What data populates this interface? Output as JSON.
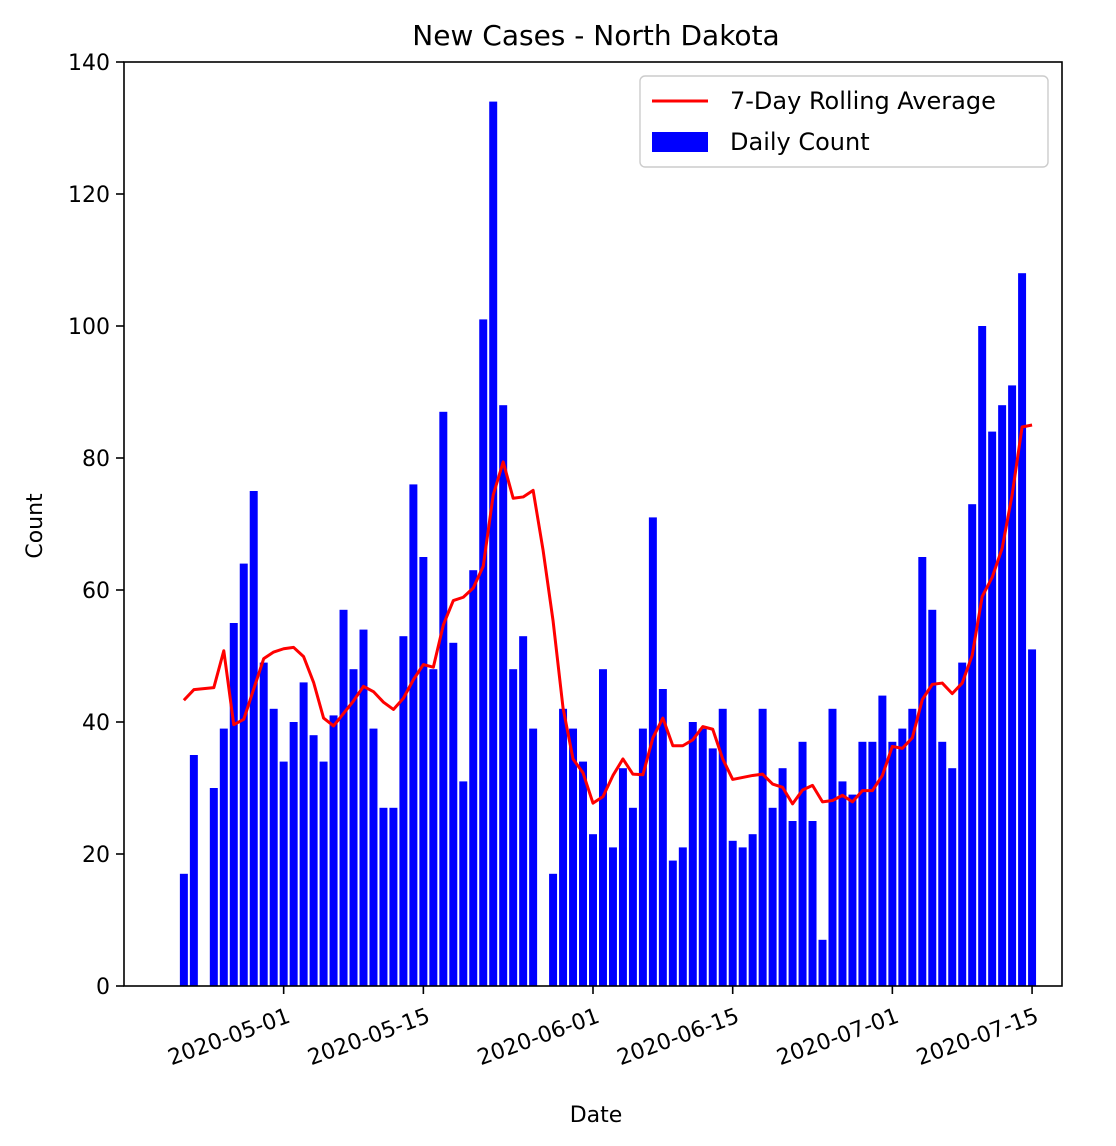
{
  "chart_data": {
    "type": "bar",
    "title": "New Cases - North Dakota",
    "xlabel": "Date",
    "ylabel": "Count",
    "ylim": [
      0,
      140
    ],
    "xlim": [
      "2020-04-15",
      "2020-07-18"
    ],
    "yticks": [
      0,
      20,
      40,
      60,
      80,
      100,
      120,
      140
    ],
    "xticks": [
      "2020-05-01",
      "2020-05-15",
      "2020-06-01",
      "2020-06-15",
      "2020-07-01",
      "2020-07-15"
    ],
    "legend_position": "top-right",
    "legend": [
      {
        "label": "7-Day Rolling Average",
        "kind": "line",
        "color": "#ff0000"
      },
      {
        "label": "Daily Count",
        "kind": "patch",
        "color": "#0000ff"
      }
    ],
    "series": [
      {
        "name": "Daily Count",
        "kind": "bar",
        "color": "#0000ff",
        "points": [
          [
            "2020-04-21",
            17
          ],
          [
            "2020-04-22",
            35
          ],
          [
            "2020-04-24",
            30
          ],
          [
            "2020-04-25",
            39
          ],
          [
            "2020-04-26",
            55
          ],
          [
            "2020-04-27",
            64
          ],
          [
            "2020-04-28",
            75
          ],
          [
            "2020-04-29",
            49
          ],
          [
            "2020-04-30",
            42
          ],
          [
            "2020-05-01",
            34
          ],
          [
            "2020-05-02",
            40
          ],
          [
            "2020-05-03",
            46
          ],
          [
            "2020-05-04",
            38
          ],
          [
            "2020-05-05",
            34
          ],
          [
            "2020-05-06",
            41
          ],
          [
            "2020-05-07",
            57
          ],
          [
            "2020-05-08",
            48
          ],
          [
            "2020-05-09",
            54
          ],
          [
            "2020-05-10",
            39
          ],
          [
            "2020-05-11",
            27
          ],
          [
            "2020-05-12",
            27
          ],
          [
            "2020-05-13",
            53
          ],
          [
            "2020-05-14",
            76
          ],
          [
            "2020-05-15",
            65
          ],
          [
            "2020-05-16",
            48
          ],
          [
            "2020-05-17",
            87
          ],
          [
            "2020-05-18",
            52
          ],
          [
            "2020-05-19",
            31
          ],
          [
            "2020-05-20",
            63
          ],
          [
            "2020-05-21",
            101
          ],
          [
            "2020-05-22",
            134
          ],
          [
            "2020-05-23",
            88
          ],
          [
            "2020-05-24",
            48
          ],
          [
            "2020-05-25",
            53
          ],
          [
            "2020-05-26",
            39
          ],
          [
            "2020-05-28",
            17
          ],
          [
            "2020-05-29",
            42
          ],
          [
            "2020-05-30",
            39
          ],
          [
            "2020-05-31",
            34
          ],
          [
            "2020-06-01",
            23
          ],
          [
            "2020-06-02",
            48
          ],
          [
            "2020-06-03",
            21
          ],
          [
            "2020-06-04",
            33
          ],
          [
            "2020-06-05",
            27
          ],
          [
            "2020-06-06",
            39
          ],
          [
            "2020-06-07",
            71
          ],
          [
            "2020-06-08",
            45
          ],
          [
            "2020-06-09",
            19
          ],
          [
            "2020-06-10",
            21
          ],
          [
            "2020-06-11",
            40
          ],
          [
            "2020-06-12",
            39
          ],
          [
            "2020-06-13",
            36
          ],
          [
            "2020-06-14",
            42
          ],
          [
            "2020-06-15",
            22
          ],
          [
            "2020-06-16",
            21
          ],
          [
            "2020-06-17",
            23
          ],
          [
            "2020-06-18",
            42
          ],
          [
            "2020-06-19",
            27
          ],
          [
            "2020-06-20",
            33
          ],
          [
            "2020-06-21",
            25
          ],
          [
            "2020-06-22",
            37
          ],
          [
            "2020-06-23",
            25
          ],
          [
            "2020-06-24",
            7
          ],
          [
            "2020-06-25",
            42
          ],
          [
            "2020-06-26",
            31
          ],
          [
            "2020-06-27",
            29
          ],
          [
            "2020-06-28",
            37
          ],
          [
            "2020-06-29",
            37
          ],
          [
            "2020-06-30",
            44
          ],
          [
            "2020-07-01",
            37
          ],
          [
            "2020-07-02",
            39
          ],
          [
            "2020-07-03",
            42
          ],
          [
            "2020-07-04",
            65
          ],
          [
            "2020-07-05",
            57
          ],
          [
            "2020-07-06",
            37
          ],
          [
            "2020-07-07",
            33
          ],
          [
            "2020-07-08",
            49
          ],
          [
            "2020-07-09",
            73
          ],
          [
            "2020-07-10",
            100
          ],
          [
            "2020-07-11",
            84
          ],
          [
            "2020-07-12",
            88
          ],
          [
            "2020-07-13",
            91
          ],
          [
            "2020-07-14",
            108
          ],
          [
            "2020-07-15",
            51
          ]
        ]
      },
      {
        "name": "7-Day Rolling Average",
        "kind": "line",
        "color": "#ff0000",
        "points": [
          [
            "2020-04-21",
            43.3
          ],
          [
            "2020-04-22",
            44.9
          ],
          [
            "2020-04-24",
            45.2
          ],
          [
            "2020-04-25",
            50.8
          ],
          [
            "2020-04-26",
            39.6
          ],
          [
            "2020-04-27",
            40.4
          ],
          [
            "2020-04-28",
            45.0
          ],
          [
            "2020-04-29",
            49.6
          ],
          [
            "2020-04-30",
            50.6
          ],
          [
            "2020-05-01",
            51.1
          ],
          [
            "2020-05-02",
            51.3
          ],
          [
            "2020-05-03",
            49.9
          ],
          [
            "2020-05-04",
            46.0
          ],
          [
            "2020-05-05",
            40.6
          ],
          [
            "2020-05-06",
            39.4
          ],
          [
            "2020-05-07",
            41.3
          ],
          [
            "2020-05-08",
            43.2
          ],
          [
            "2020-05-09",
            45.4
          ],
          [
            "2020-05-10",
            44.6
          ],
          [
            "2020-05-11",
            43.0
          ],
          [
            "2020-05-12",
            41.9
          ],
          [
            "2020-05-13",
            43.6
          ],
          [
            "2020-05-14",
            46.4
          ],
          [
            "2020-05-15",
            48.7
          ],
          [
            "2020-05-16",
            48.3
          ],
          [
            "2020-05-17",
            54.7
          ],
          [
            "2020-05-18",
            58.4
          ],
          [
            "2020-05-19",
            58.9
          ],
          [
            "2020-05-20",
            60.3
          ],
          [
            "2020-05-21",
            63.6
          ],
          [
            "2020-05-22",
            74.4
          ],
          [
            "2020-05-23",
            79.4
          ],
          [
            "2020-05-24",
            73.9
          ],
          [
            "2020-05-25",
            74.1
          ],
          [
            "2020-05-26",
            75.1
          ],
          [
            "2020-05-27",
            66.0
          ],
          [
            "2020-05-28",
            55.3
          ],
          [
            "2020-05-29",
            42.1
          ],
          [
            "2020-05-30",
            34.4
          ],
          [
            "2020-05-31",
            32.3
          ],
          [
            "2020-06-01",
            27.7
          ],
          [
            "2020-06-02",
            28.7
          ],
          [
            "2020-06-03",
            31.9
          ],
          [
            "2020-06-04",
            34.4
          ],
          [
            "2020-06-05",
            32.1
          ],
          [
            "2020-06-06",
            32.0
          ],
          [
            "2020-06-07",
            37.6
          ],
          [
            "2020-06-08",
            40.6
          ],
          [
            "2020-06-09",
            36.4
          ],
          [
            "2020-06-10",
            36.4
          ],
          [
            "2020-06-11",
            37.3
          ],
          [
            "2020-06-12",
            39.3
          ],
          [
            "2020-06-13",
            38.9
          ],
          [
            "2020-06-14",
            34.4
          ],
          [
            "2020-06-15",
            31.3
          ],
          [
            "2020-06-16",
            31.6
          ],
          [
            "2020-06-17",
            31.9
          ],
          [
            "2020-06-18",
            32.1
          ],
          [
            "2020-06-19",
            30.6
          ],
          [
            "2020-06-20",
            30.1
          ],
          [
            "2020-06-21",
            27.6
          ],
          [
            "2020-06-22",
            29.7
          ],
          [
            "2020-06-23",
            30.4
          ],
          [
            "2020-06-24",
            27.9
          ],
          [
            "2020-06-25",
            28.1
          ],
          [
            "2020-06-26",
            28.9
          ],
          [
            "2020-06-27",
            27.9
          ],
          [
            "2020-06-28",
            29.6
          ],
          [
            "2020-06-29",
            29.6
          ],
          [
            "2020-06-30",
            31.9
          ],
          [
            "2020-07-01",
            36.3
          ],
          [
            "2020-07-02",
            36.0
          ],
          [
            "2020-07-03",
            37.6
          ],
          [
            "2020-07-04",
            43.4
          ],
          [
            "2020-07-05",
            45.7
          ],
          [
            "2020-07-06",
            45.9
          ],
          [
            "2020-07-07",
            44.3
          ],
          [
            "2020-07-08",
            45.9
          ],
          [
            "2020-07-09",
            50.1
          ],
          [
            "2020-07-10",
            59.0
          ],
          [
            "2020-07-11",
            61.9
          ],
          [
            "2020-07-12",
            66.3
          ],
          [
            "2020-07-13",
            74.4
          ],
          [
            "2020-07-14",
            84.7
          ],
          [
            "2020-07-15",
            85.0
          ]
        ]
      }
    ]
  }
}
